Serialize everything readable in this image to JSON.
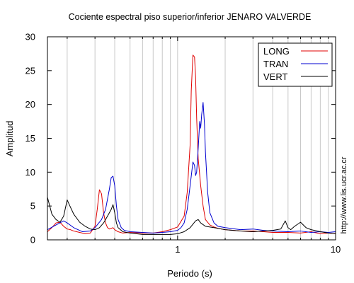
{
  "side_label": "http://www.lis.ucr.ac.cr",
  "chart_data": {
    "type": "line",
    "title": "Cociente espectral piso superior/inferior  JENARO VALVERDE",
    "xlabel": "Periodo (s)",
    "ylabel": "Amplitud",
    "x_scale": "log",
    "xlim": [
      0.15,
      10
    ],
    "ylim": [
      0,
      30
    ],
    "x_ticks": [
      1,
      10
    ],
    "x_tick_labels": [
      "1",
      "10"
    ],
    "y_ticks": [
      0,
      5,
      10,
      15,
      20,
      25,
      30
    ],
    "y_tick_labels": [
      "0",
      "5",
      "10",
      "15",
      "20",
      "25",
      "30"
    ],
    "grid": "vertical",
    "legend_position": "top-right",
    "series": [
      {
        "name": "LONG",
        "color": "#e00000",
        "x": [
          0.15,
          0.16,
          0.17,
          0.18,
          0.19,
          0.2,
          0.21,
          0.22,
          0.24,
          0.26,
          0.28,
          0.3,
          0.31,
          0.32,
          0.33,
          0.34,
          0.35,
          0.36,
          0.37,
          0.38,
          0.39,
          0.4,
          0.42,
          0.45,
          0.5,
          0.6,
          0.7,
          0.8,
          0.9,
          1.0,
          1.1,
          1.15,
          1.2,
          1.22,
          1.25,
          1.28,
          1.3,
          1.32,
          1.35,
          1.4,
          1.45,
          1.5,
          1.6,
          1.7,
          1.8,
          2.0,
          2.5,
          3,
          3.5,
          4,
          5,
          6,
          7,
          8,
          9,
          10
        ],
        "y": [
          1.2,
          1.8,
          2.5,
          2.6,
          2.0,
          1.6,
          1.5,
          1.3,
          1.1,
          0.9,
          1.0,
          2.0,
          4.5,
          7.4,
          6.8,
          4.0,
          2.5,
          1.8,
          1.6,
          1.7,
          1.8,
          1.5,
          1.2,
          1.0,
          1.1,
          1.0,
          1.0,
          1.2,
          1.5,
          1.9,
          3.5,
          7.0,
          14.0,
          22.0,
          27.3,
          27.0,
          24.0,
          18.0,
          12.0,
          8.0,
          5.0,
          3.0,
          2.2,
          1.9,
          1.7,
          1.5,
          1.3,
          1.3,
          1.2,
          1.1,
          1.1,
          1.0,
          1.2,
          0.9,
          1.0,
          0.9
        ]
      },
      {
        "name": "TRAN",
        "color": "#0000d0",
        "x": [
          0.15,
          0.17,
          0.19,
          0.2,
          0.22,
          0.25,
          0.28,
          0.3,
          0.33,
          0.35,
          0.37,
          0.38,
          0.39,
          0.4,
          0.41,
          0.42,
          0.44,
          0.46,
          0.5,
          0.6,
          0.7,
          0.8,
          0.9,
          1.0,
          1.05,
          1.1,
          1.15,
          1.2,
          1.25,
          1.28,
          1.3,
          1.32,
          1.35,
          1.38,
          1.4,
          1.42,
          1.45,
          1.48,
          1.5,
          1.55,
          1.6,
          1.7,
          1.8,
          2.0,
          2.5,
          3,
          3.5,
          4,
          5,
          6,
          7,
          8,
          9,
          10
        ],
        "y": [
          1.5,
          2.2,
          2.8,
          2.5,
          1.8,
          1.2,
          1.3,
          1.8,
          3.0,
          4.5,
          7.5,
          9.2,
          9.4,
          8.0,
          5.0,
          3.0,
          1.8,
          1.4,
          1.2,
          1.1,
          1.0,
          1.1,
          1.2,
          1.4,
          1.8,
          2.5,
          4.5,
          8.0,
          11.5,
          11.0,
          9.5,
          10.0,
          13.5,
          17.5,
          16.5,
          18.5,
          20.3,
          17.0,
          13.0,
          7.0,
          4.0,
          2.5,
          2.0,
          1.8,
          1.5,
          1.6,
          1.4,
          1.3,
          1.2,
          1.3,
          1.1,
          1.2,
          1.1,
          1.2
        ]
      },
      {
        "name": "VERT",
        "color": "#000000",
        "x": [
          0.15,
          0.16,
          0.17,
          0.18,
          0.19,
          0.2,
          0.21,
          0.22,
          0.24,
          0.26,
          0.28,
          0.3,
          0.32,
          0.34,
          0.36,
          0.38,
          0.39,
          0.4,
          0.41,
          0.42,
          0.45,
          0.5,
          0.6,
          0.7,
          0.8,
          0.9,
          1.0,
          1.1,
          1.2,
          1.3,
          1.35,
          1.4,
          1.5,
          1.7,
          2.0,
          2.5,
          3,
          3.5,
          4,
          4.5,
          4.8,
          5,
          5.2,
          5.5,
          6,
          6.5,
          7,
          8,
          9,
          10
        ],
        "y": [
          6.3,
          3.8,
          3.0,
          2.6,
          3.5,
          5.9,
          4.8,
          3.8,
          2.6,
          2.0,
          1.6,
          1.5,
          1.8,
          2.5,
          3.5,
          4.5,
          5.2,
          4.0,
          2.5,
          1.8,
          1.2,
          1.0,
          0.8,
          0.8,
          0.8,
          0.8,
          0.9,
          1.2,
          1.8,
          2.8,
          3.0,
          2.5,
          2.0,
          1.8,
          1.5,
          1.3,
          1.2,
          1.3,
          1.4,
          1.6,
          2.8,
          1.8,
          1.5,
          2.0,
          2.6,
          1.8,
          1.5,
          1.2,
          1.0,
          0.9
        ]
      }
    ]
  }
}
